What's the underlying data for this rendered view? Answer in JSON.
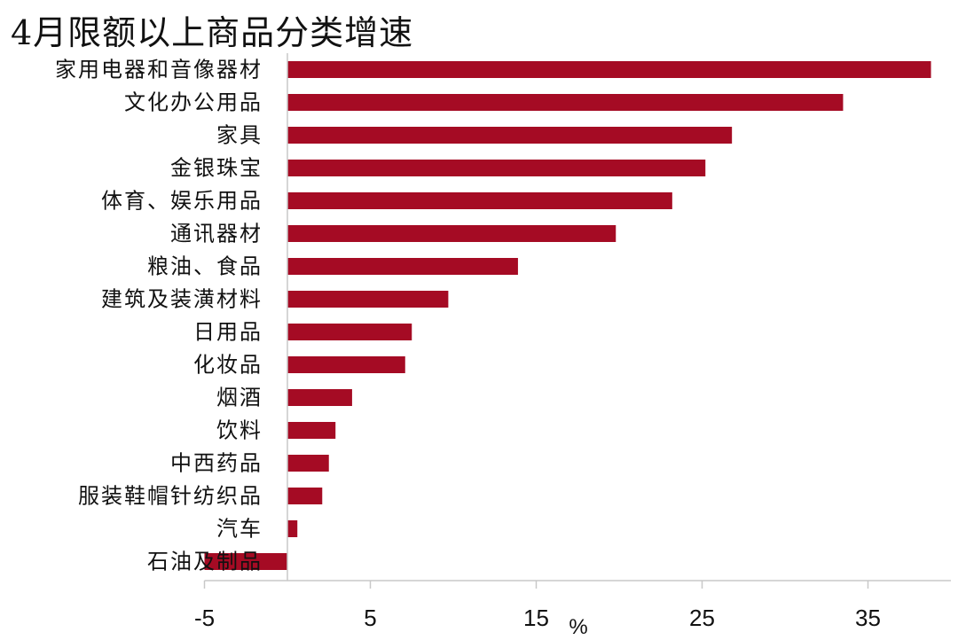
{
  "chart_data": {
    "type": "bar",
    "orientation": "horizontal",
    "title": "4月限额以上商品分类增速",
    "categories": [
      "家用电器和音像器材",
      "文化办公用品",
      "家具",
      "金银珠宝",
      "体育、娱乐用品",
      "通讯器材",
      "粮油、食品",
      "建筑及装潢材料",
      "日用品",
      "化妆品",
      "烟酒",
      "饮料",
      "中西药品",
      "服装鞋帽针纺织品",
      "汽车",
      "石油及制品"
    ],
    "values": [
      38.8,
      33.5,
      26.8,
      25.2,
      23.2,
      19.8,
      13.9,
      9.7,
      7.5,
      7.1,
      3.9,
      2.9,
      2.5,
      2.1,
      0.6,
      -5.0
    ],
    "xlim": [
      -5,
      40
    ],
    "xticks": [
      -5,
      5,
      15,
      25,
      35
    ],
    "xtick_labels": [
      "-5",
      "5",
      "15",
      "25",
      "35"
    ],
    "xlabel": "%",
    "bar_color": "#a50b24",
    "grid": false,
    "legend": "none"
  }
}
